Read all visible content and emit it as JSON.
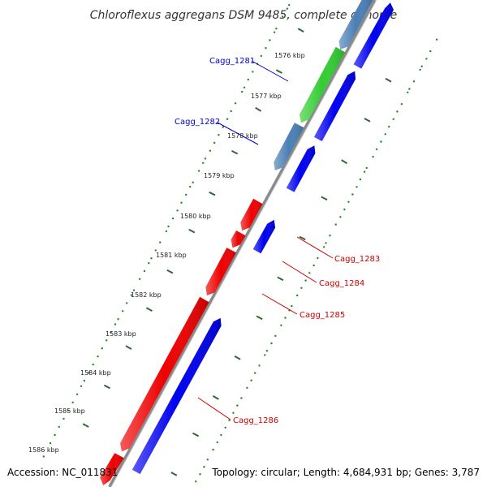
{
  "title": "Chloroflexus aggregans DSM 9485, complete genome",
  "footer": {
    "accession": "Accession: NC_011831",
    "summary": "Topology: circular; Length: 4,684,931 bp; Genes: 3,787"
  },
  "ticks": [
    "1576 kbp",
    "1577 kbp",
    "1578 kbp",
    "1579 kbp",
    "1580 kbp",
    "1581 kbp",
    "1582 kbp",
    "1583 kbp",
    "1584 kbp",
    "1585 kbp",
    "1586 kbp"
  ],
  "gene_labels": [
    {
      "name": "Cagg_1281",
      "color": "#0000cc"
    },
    {
      "name": "Cagg_1282",
      "color": "#0000cc"
    },
    {
      "name": "Cagg_1283",
      "color": "#cc0000"
    },
    {
      "name": "Cagg_1284",
      "color": "#cc0000"
    },
    {
      "name": "Cagg_1285",
      "color": "#cc0000"
    },
    {
      "name": "Cagg_1286",
      "color": "#cc0000"
    }
  ],
  "colors": {
    "forward_blue": "#0000ee",
    "reverse_red": "#ee0000",
    "green": "#33cc33",
    "steel": "#4a7fb5",
    "backbone": "#8a8a8a",
    "dots": "#228822"
  }
}
